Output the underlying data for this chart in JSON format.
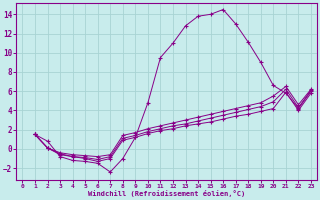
{
  "xlabel": "Windchill (Refroidissement éolien,°C)",
  "bg_color": "#c8ecec",
  "grid_color": "#a8d4d4",
  "line_color": "#880088",
  "xlim": [
    -0.5,
    23.5
  ],
  "ylim": [
    -3.2,
    15.2
  ],
  "xticks": [
    0,
    1,
    2,
    3,
    4,
    5,
    6,
    7,
    8,
    9,
    10,
    11,
    12,
    13,
    14,
    15,
    16,
    17,
    18,
    19,
    20,
    21,
    22,
    23
  ],
  "yticks": [
    -2,
    0,
    2,
    4,
    6,
    8,
    10,
    12,
    14
  ],
  "series1_x": [
    1,
    2,
    3,
    4,
    5,
    6,
    7,
    8,
    9,
    10,
    11,
    12,
    13,
    14,
    15,
    16,
    17,
    18,
    19,
    20,
    21,
    22,
    23
  ],
  "series1_y": [
    1.5,
    0.8,
    -0.8,
    -1.2,
    -1.3,
    -1.5,
    -2.4,
    -1.0,
    1.2,
    4.8,
    9.5,
    11.0,
    12.8,
    13.8,
    14.0,
    14.5,
    13.0,
    11.1,
    9.0,
    6.6,
    5.8,
    4.2,
    6.0
  ],
  "series2_x": [
    1,
    2,
    3,
    5,
    6,
    7,
    8,
    9,
    10,
    11,
    12,
    13,
    14,
    15,
    16,
    17,
    18,
    19,
    20,
    21,
    22,
    23
  ],
  "series2_y": [
    1.5,
    0.1,
    -0.6,
    -1.0,
    -1.3,
    -1.0,
    0.9,
    1.2,
    1.6,
    1.9,
    2.1,
    2.4,
    2.6,
    2.8,
    3.1,
    3.4,
    3.6,
    3.9,
    4.2,
    5.9,
    4.0,
    5.8
  ],
  "series3_x": [
    1,
    2,
    3,
    4,
    5,
    6,
    7,
    8,
    9,
    10,
    11,
    12,
    13,
    14,
    15,
    16,
    17,
    18,
    19,
    20,
    21,
    22,
    23
  ],
  "series3_y": [
    1.5,
    0.1,
    -0.5,
    -0.8,
    -0.9,
    -1.1,
    -0.8,
    1.1,
    1.4,
    1.8,
    2.1,
    2.4,
    2.6,
    2.9,
    3.2,
    3.5,
    3.8,
    4.1,
    4.4,
    4.9,
    6.2,
    4.3,
    6.1
  ],
  "series4_x": [
    1,
    2,
    3,
    4,
    5,
    6,
    7,
    8,
    9,
    10,
    11,
    12,
    13,
    14,
    15,
    16,
    17,
    18,
    19,
    20,
    21,
    22,
    23
  ],
  "series4_y": [
    1.5,
    0.1,
    -0.4,
    -0.6,
    -0.7,
    -0.8,
    -0.6,
    1.4,
    1.7,
    2.1,
    2.4,
    2.7,
    3.0,
    3.3,
    3.6,
    3.9,
    4.2,
    4.5,
    4.8,
    5.5,
    6.5,
    4.6,
    6.2
  ]
}
